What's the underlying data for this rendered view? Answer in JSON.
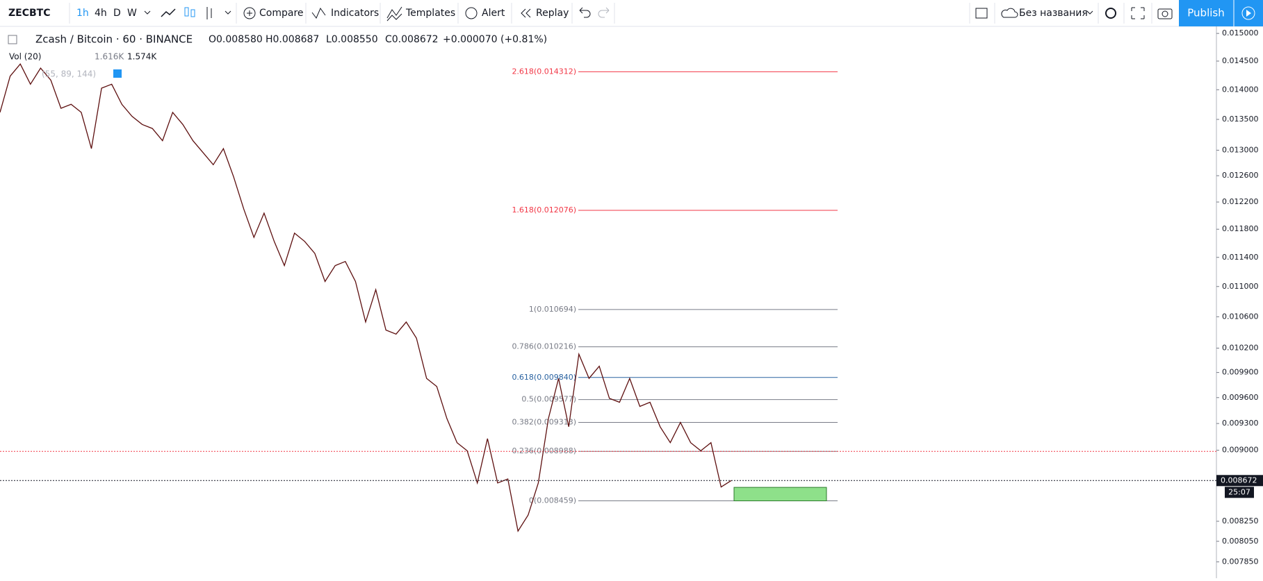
{
  "toolbar": {
    "symbol": "ZECBTC",
    "intervals": [
      "1h",
      "4h",
      "D",
      "W"
    ],
    "compare": "Compare",
    "indicators": "Indicators",
    "templates": "Templates",
    "alert": "Alert",
    "replay": "Replay",
    "layout_name": "Без названия",
    "publish": "Publish"
  },
  "legend": {
    "instrument": "Zcash / Bitcoin · 60 · BINANCE",
    "open": "O0.008580",
    "high": "H0.008687",
    "low": "L0.008550",
    "close": "C0.008672",
    "change": "+0.000070 (+0.81%)",
    "volume_name": "Vol (20)",
    "volume_values": [
      "1.616K",
      "1.574K"
    ],
    "ema_params": "(55, 89, 144)"
  },
  "chart_data": {
    "type": "line",
    "log": true,
    "color": "#5d0f0f",
    "categories": [
      null,
      null,
      null,
      null,
      null,
      null,
      null,
      null,
      null,
      null,
      null,
      null,
      null,
      null,
      null,
      null,
      null,
      null,
      null,
      null,
      null,
      null,
      null,
      null,
      null,
      null,
      null,
      null,
      null,
      null,
      null,
      null,
      null,
      null,
      null,
      null,
      null,
      null,
      null,
      null,
      null,
      null,
      null,
      null,
      null,
      null,
      null,
      null,
      null,
      null,
      null,
      null,
      null,
      null,
      null,
      null,
      null,
      null,
      null,
      null,
      null,
      null,
      null,
      null,
      null,
      null,
      null,
      null,
      null,
      null,
      null,
      null,
      null
    ],
    "values": [
      0.013617,
      0.014235,
      0.014448,
      0.014095,
      0.014376,
      0.014165,
      0.013685,
      0.013752,
      0.013617,
      0.013025,
      0.014027,
      0.014095,
      0.013752,
      0.013552,
      0.013416,
      0.01335,
      0.013152,
      0.013617,
      0.013416,
      0.013152,
      0.012961,
      0.012771,
      0.013025,
      0.012582,
      0.012095,
      0.011682,
      0.012035,
      0.011625,
      0.011286,
      0.011743,
      0.011625,
      0.011455,
      0.011068,
      0.011286,
      0.011343,
      0.011068,
      0.010532,
      0.010958,
      0.010428,
      0.010377,
      0.010532,
      0.010326,
      0.009829,
      0.009732,
      0.009357,
      0.009084,
      0.008994,
      0.008646,
      0.009129,
      0.008646,
      0.008689,
      0.008151,
      0.008313,
      0.008646,
      0.009357,
      0.009829,
      0.009263,
      0.010125,
      0.009829,
      0.009976,
      0.009591,
      0.009545,
      0.009829,
      0.009497,
      0.009545,
      0.009263,
      0.009084,
      0.009312,
      0.009084,
      0.008994,
      0.009084,
      0.008604,
      0.008672
    ],
    "ylim": [
      0.00772,
      0.01513
    ],
    "yticks": [
      {
        "value": 0.015,
        "label": "0.015000"
      },
      {
        "value": 0.0145,
        "label": "0.014500"
      },
      {
        "value": 0.014,
        "label": "0.014000"
      },
      {
        "value": 0.0135,
        "label": "0.013500"
      },
      {
        "value": 0.013,
        "label": "0.013000"
      },
      {
        "value": 0.0126,
        "label": "0.012600"
      },
      {
        "value": 0.0122,
        "label": "0.012200"
      },
      {
        "value": 0.0118,
        "label": "0.011800"
      },
      {
        "value": 0.0114,
        "label": "0.011400"
      },
      {
        "value": 0.011,
        "label": "0.011000"
      },
      {
        "value": 0.0106,
        "label": "0.010600"
      },
      {
        "value": 0.0102,
        "label": "0.010200"
      },
      {
        "value": 0.0099,
        "label": "0.009900"
      },
      {
        "value": 0.0096,
        "label": "0.009600"
      },
      {
        "value": 0.0093,
        "label": "0.009300"
      },
      {
        "value": 0.009,
        "label": "0.009000"
      },
      {
        "value": 0.00825,
        "label": "0.008250"
      },
      {
        "value": 0.00805,
        "label": "0.008050"
      },
      {
        "value": 0.00785,
        "label": "0.007850"
      }
    ],
    "fib_levels": [
      {
        "text": "2.618(0.014312)",
        "value": 0.014312,
        "color": "#f23645"
      },
      {
        "text": "1.618(0.012076)",
        "value": 0.012076,
        "color": "#f23645"
      },
      {
        "text": "1(0.010694)",
        "value": 0.010694,
        "color": "#787b86"
      },
      {
        "text": "0.786(0.010216)",
        "value": 0.010216,
        "color": "#787b86"
      },
      {
        "text": "0.618(0.009840)",
        "value": 0.00984,
        "color": "#2962a0"
      },
      {
        "text": "0.5(0.009577)",
        "value": 0.009577,
        "color": "#787b86"
      },
      {
        "text": "0.382(0.009313)",
        "value": 0.009313,
        "color": "#787b86"
      },
      {
        "text": "0.236(0.008988)",
        "value": 0.008988,
        "color": "#787b86"
      },
      {
        "text": "0(0.008459)",
        "value": 0.008459,
        "color": "#787b86"
      }
    ],
    "alert_line": {
      "value": 0.008988,
      "color": "#f23645"
    },
    "last_price": {
      "value": 0.008672,
      "label": "0.008672",
      "countdown": "25:07"
    },
    "rectangle": {
      "top": 0.0086,
      "bottom": 0.008459,
      "color": "#8ee08a"
    }
  }
}
